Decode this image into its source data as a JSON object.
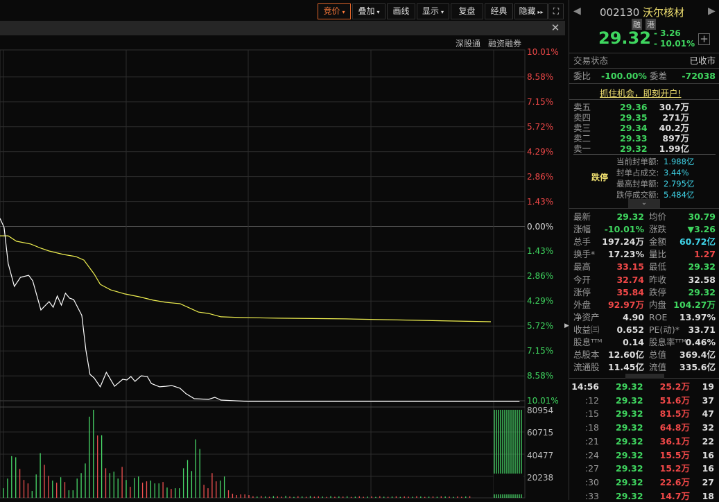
{
  "toolbar": {
    "buttons": [
      {
        "label": "竞价",
        "caret": "▾",
        "active": true
      },
      {
        "label": "叠加",
        "caret": "▾"
      },
      {
        "label": "画线"
      },
      {
        "label": "显示",
        "caret": "▾"
      },
      {
        "label": "复盘"
      },
      {
        "label": "经典"
      },
      {
        "label": "隐藏",
        "caret": "▸▸"
      }
    ],
    "fullscreen_icon": "expand-icon",
    "close_icon": "close-icon"
  },
  "chart_header": {
    "links": [
      "深股通",
      "融资融券"
    ]
  },
  "chart_data": {
    "type": "line",
    "prev_close": 32.58,
    "ylim_pct": [
      -10.01,
      10.01
    ],
    "y_ticks": [
      "10.01%",
      "8.58%",
      "7.15%",
      "5.72%",
      "4.29%",
      "2.86%",
      "1.43%",
      "0.00%",
      "1.43%",
      "2.86%",
      "4.29%",
      "5.72%",
      "7.15%",
      "8.58%",
      "10.01%"
    ],
    "price_series": {
      "minutes": [
        0,
        2,
        4,
        7,
        10,
        14,
        16,
        20,
        24,
        26,
        28,
        30,
        32,
        34,
        36,
        40,
        42,
        44,
        46,
        49,
        52,
        56,
        60,
        62,
        64,
        66,
        69,
        72,
        74,
        78,
        81,
        84,
        88,
        91,
        95,
        102,
        105,
        108,
        122,
        240,
        254
      ],
      "pct": [
        0.48,
        -0.04,
        -2.11,
        -3.42,
        -2.9,
        -2.78,
        -3.1,
        -4.77,
        -4.29,
        -4.61,
        -3.97,
        -4.49,
        -3.81,
        -4.09,
        -4.17,
        -5.08,
        -7.07,
        -8.46,
        -8.66,
        -9.17,
        -8.34,
        -9.14,
        -8.74,
        -8.78,
        -8.58,
        -8.86,
        -8.54,
        -8.58,
        -8.98,
        -9.17,
        -9.14,
        -9.1,
        -9.25,
        -9.57,
        -9.85,
        -9.89,
        -9.77,
        -9.93,
        -10.01,
        -10.01,
        -10.01
      ],
      "color": "#ffffff"
    },
    "avg_series": {
      "minutes": [
        0,
        4,
        8,
        15,
        20,
        24,
        31,
        37,
        41,
        46,
        49,
        54,
        61,
        68,
        75,
        81,
        88,
        97,
        102,
        108,
        117,
        136,
        169,
        203,
        240
      ],
      "pct": [
        -0.52,
        -0.52,
        -0.83,
        -0.99,
        -1.23,
        -1.39,
        -1.59,
        -1.71,
        -1.91,
        -2.7,
        -3.3,
        -3.61,
        -3.85,
        -4.01,
        -4.21,
        -4.33,
        -4.41,
        -4.89,
        -4.97,
        -5.16,
        -5.2,
        -5.24,
        -5.28,
        -5.36,
        -5.44
      ],
      "color": "#f0f050"
    },
    "volume": {
      "ylim": [
        0,
        80954
      ],
      "y_ticks": [
        "80954",
        "60715",
        "40477",
        "20238"
      ],
      "values": [
        8854,
        17707,
        38366,
        37312,
        26561,
        16443,
        13280,
        6324,
        21502,
        41106,
        30355,
        20237,
        15810,
        13913,
        18972,
        14545,
        6956,
        6956,
        17707,
        22766,
        31620,
        74623,
        80954,
        57338,
        57549,
        27193,
        22766,
        24031,
        17707,
        28458,
        16443,
        10118,
        18340,
        19604,
        13913,
        15178,
        15810,
        13280,
        13280,
        14545,
        9486,
        8221,
        8854,
        8854,
        27193,
        34782,
        24664,
        53754,
        44900,
        12016,
        8854,
        22766,
        15178,
        15810,
        19604,
        6956,
        3794,
        2530,
        3162,
        3162,
        2530,
        1500,
        1200,
        1800,
        1300,
        1000,
        1600,
        1400,
        1100,
        1900,
        1200,
        900,
        1500,
        1300,
        1000,
        1700,
        1100,
        1400,
        1200,
        900,
        1600,
        1000,
        1300,
        1200,
        1500,
        900,
        1100,
        1400,
        1000,
        1200,
        1300,
        900,
        1500,
        1100,
        1000,
        1200,
        1400,
        900,
        1300,
        1100,
        1000,
        1500,
        1200,
        900,
        1100,
        1300,
        1000,
        1400,
        1200,
        1100,
        900,
        1300,
        1000,
        1200,
        1500
      ],
      "colors": [
        "g",
        "g",
        "g",
        "g",
        "r",
        "r",
        "r",
        "g",
        "g",
        "g",
        "r",
        "r",
        "g",
        "r",
        "g",
        "r",
        "g",
        "g",
        "g",
        "g",
        "g",
        "g",
        "g",
        "r",
        "g",
        "r",
        "g",
        "g",
        "g",
        "r",
        "g",
        "r",
        "g",
        "g",
        "r",
        "r",
        "g",
        "g",
        "g",
        "r",
        "g",
        "r",
        "g",
        "g",
        "g",
        "g",
        "g",
        "g",
        "g",
        "r",
        "r",
        "r",
        "r",
        "g",
        "g",
        "r",
        "r",
        "r",
        "r",
        "r",
        "r",
        "r",
        "g",
        "r",
        "g",
        "r",
        "g",
        "r",
        "r",
        "g",
        "r",
        "g",
        "r",
        "g",
        "r",
        "g",
        "r",
        "r",
        "g",
        "r",
        "g",
        "r",
        "g",
        "r",
        "g",
        "r",
        "g",
        "r",
        "r",
        "g",
        "r",
        "g",
        "r",
        "g",
        "r",
        "g",
        "r",
        "g",
        "r",
        "r",
        "g",
        "r",
        "g",
        "r",
        "g",
        "r",
        "g",
        "r",
        "g",
        "r",
        "g",
        "r",
        "r",
        "g",
        "r",
        "g",
        "r",
        "g",
        "r"
      ],
      "auction_values": [
        80954,
        80954,
        80954,
        80954,
        80954,
        80954,
        80954,
        80954,
        80954,
        80954,
        80954,
        80954,
        80954,
        80954
      ]
    },
    "colors": {
      "up": "#f05050",
      "down": "#48d868",
      "price_line": "#ffffff",
      "avg_line": "#f0f050"
    }
  },
  "quote": {
    "code": "002130",
    "name": "沃尔核材",
    "tags": [
      "融",
      "港"
    ],
    "price": "29.32",
    "change": "- 3.26",
    "change_pct": "- 10.01%",
    "status_label": "交易状态",
    "status": "已收市",
    "wb_label": "委比",
    "wb": "-100.00%",
    "wc_label": "委差",
    "wc": "-72038",
    "promo": "抓住机会，即刻开户!",
    "asks": [
      {
        "label": "卖五",
        "price": "29.36",
        "vol": "30.7万"
      },
      {
        "label": "卖四",
        "price": "29.35",
        "vol": "271万"
      },
      {
        "label": "卖三",
        "price": "29.34",
        "vol": "40.2万"
      },
      {
        "label": "卖二",
        "price": "29.33",
        "vol": "897万"
      },
      {
        "label": "卖一",
        "price": "29.32",
        "vol": "1.99亿"
      }
    ],
    "limit_label": "跌停",
    "limit_stats": [
      {
        "label": "当前封单额:",
        "value": "1.988亿"
      },
      {
        "label": "封单占成交:",
        "value": "3.44%"
      },
      {
        "label": "最高封单额:",
        "value": "2.795亿"
      },
      {
        "label": "跌停成交额:",
        "value": "5.484亿"
      }
    ],
    "stats": [
      {
        "l1": "最新",
        "v1": "29.32",
        "c1": "green",
        "l2": "均价",
        "v2": "30.79",
        "c2": "green"
      },
      {
        "l1": "涨幅",
        "v1": "-10.01%",
        "c1": "green",
        "l2": "涨跌",
        "v2": "▼3.26",
        "c2": "green"
      },
      {
        "l1": "总手",
        "v1": "197.24万",
        "c1": "white",
        "l2": "金额",
        "v2": "60.72亿",
        "c2": "cyan"
      },
      {
        "l1": "换手*",
        "v1": "17.23%",
        "c1": "white",
        "l2": "量比",
        "v2": "1.27",
        "c2": "red"
      },
      {
        "l1": "最高",
        "v1": "33.15",
        "c1": "red",
        "l2": "最低",
        "v2": "29.32",
        "c2": "green"
      },
      {
        "l1": "今开",
        "v1": "32.74",
        "c1": "red",
        "l2": "昨收",
        "v2": "32.58",
        "c2": "white"
      },
      {
        "l1": "涨停",
        "v1": "35.84",
        "c1": "red",
        "l2": "跌停",
        "v2": "29.32",
        "c2": "green"
      },
      {
        "l1": "外盘",
        "v1": "92.97万",
        "c1": "red",
        "l2": "内盘",
        "v2": "104.27万",
        "c2": "green"
      },
      {
        "l1": "净资产",
        "v1": "4.90",
        "c1": "white",
        "l2": "ROE",
        "v2": "13.97%",
        "c2": "white"
      },
      {
        "l1": "收益㈢",
        "v1": "0.652",
        "c1": "white",
        "l2": "PE(动)*",
        "v2": "33.71",
        "c2": "white"
      },
      {
        "l1": "股息ᵀᵀᴹ",
        "v1": "0.14",
        "c1": "white",
        "l2": "股息率ᵀᵀᴹ",
        "v2": "0.46%",
        "c2": "white"
      },
      {
        "l1": "总股本",
        "v1": "12.60亿",
        "c1": "white",
        "l2": "总值",
        "v2": "369.4亿",
        "c2": "white"
      },
      {
        "l1": "流通股",
        "v1": "11.45亿",
        "c1": "white",
        "l2": "流值",
        "v2": "335.6亿",
        "c2": "white"
      }
    ],
    "trades": [
      {
        "t": "14:56",
        "p": "29.32",
        "v": "25.2万",
        "n": "19"
      },
      {
        "t": ":12",
        "p": "29.32",
        "v": "51.6万",
        "n": "37"
      },
      {
        "t": ":15",
        "p": "29.32",
        "v": "81.5万",
        "n": "47"
      },
      {
        "t": ":18",
        "p": "29.32",
        "v": "64.8万",
        "n": "32"
      },
      {
        "t": ":21",
        "p": "29.32",
        "v": "36.1万",
        "n": "22"
      },
      {
        "t": ":24",
        "p": "29.32",
        "v": "15.5万",
        "n": "16"
      },
      {
        "t": ":27",
        "p": "29.32",
        "v": "15.2万",
        "n": "16"
      },
      {
        "t": ":30",
        "p": "29.32",
        "v": "22.6万",
        "n": "27"
      },
      {
        "t": ":33",
        "p": "29.32",
        "v": "14.7万",
        "n": "18"
      }
    ]
  }
}
